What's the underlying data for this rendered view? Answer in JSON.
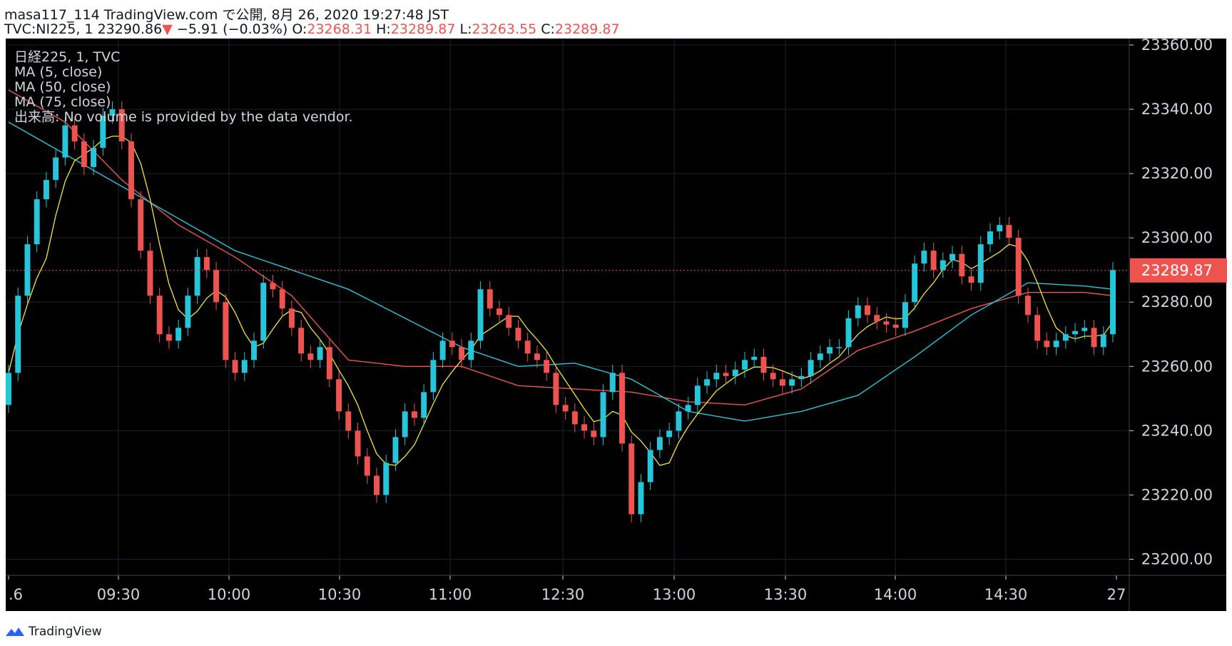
{
  "header": {
    "line1": "masa117_114 TradingView.com で公開, 8月 26, 2020 19:27:48 JST",
    "symbol": "TVC:NI225, 1",
    "price": "23290.86",
    "arrow": "▼",
    "change": "−5.91 (−0.03%)",
    "o_label": "O:",
    "o_value": "23268.31",
    "h_label": "H:",
    "h_value": "23289.87",
    "l_label": "L:",
    "l_value": "23263.55",
    "c_label": "C:",
    "c_value": "23289.87"
  },
  "legend": [
    "日経225, 1, TVC",
    "MA (5, close)",
    "MA (50, close)",
    "MA (75, close)",
    "出来高: No volume is provided by the data vendor."
  ],
  "footer": {
    "brand": "TradingView"
  },
  "colors": {
    "background": "#000000",
    "grid": "#1e222d",
    "up": "#26c6da",
    "down": "#ef5350",
    "ma5": "#f5e536",
    "ma50": "#26c6da",
    "ma75": "#ef5350",
    "price_line": "#ef5350",
    "text": "#d1d4dc"
  },
  "chart_data": {
    "type": "candlestick",
    "title": "日経225, 1, TVC",
    "ylim": [
      23195,
      23362
    ],
    "y_ticks": [
      "23200.00",
      "23220.00",
      "23240.00",
      "23260.00",
      "23280.00",
      "23300.00",
      "23320.00",
      "23340.00",
      "23360.00"
    ],
    "x_ticks": [
      ".6",
      "09:30",
      "10:00",
      "10:30",
      "11:00",
      "12:30",
      "13:00",
      "13:30",
      "14:00",
      "14:30",
      "27"
    ],
    "last_price": "23289.87",
    "last_price_value": 23289.87,
    "close_path": [
      [
        0,
        23258
      ],
      [
        1,
        23282
      ],
      [
        2,
        23298
      ],
      [
        3,
        23312
      ],
      [
        4,
        23318
      ],
      [
        5,
        23325
      ],
      [
        6,
        23335
      ],
      [
        7,
        23330
      ],
      [
        8,
        23322
      ],
      [
        9,
        23328
      ],
      [
        10,
        23338
      ],
      [
        11,
        23340
      ],
      [
        12,
        23330
      ],
      [
        13,
        23312
      ],
      [
        14,
        23296
      ],
      [
        15,
        23282
      ],
      [
        16,
        23270
      ],
      [
        17,
        23268
      ],
      [
        18,
        23272
      ],
      [
        19,
        23282
      ],
      [
        20,
        23294
      ],
      [
        21,
        23290
      ],
      [
        22,
        23280
      ],
      [
        23,
        23262
      ],
      [
        24,
        23258
      ],
      [
        25,
        23262
      ],
      [
        26,
        23268
      ],
      [
        27,
        23286
      ],
      [
        28,
        23284
      ],
      [
        29,
        23278
      ],
      [
        30,
        23272
      ],
      [
        31,
        23264
      ],
      [
        32,
        23262
      ],
      [
        33,
        23266
      ],
      [
        34,
        23256
      ],
      [
        35,
        23246
      ],
      [
        36,
        23240
      ],
      [
        37,
        23232
      ],
      [
        38,
        23226
      ],
      [
        39,
        23220
      ],
      [
        40,
        23230
      ],
      [
        41,
        23238
      ],
      [
        42,
        23246
      ],
      [
        43,
        23244
      ],
      [
        44,
        23252
      ],
      [
        45,
        23262
      ],
      [
        46,
        23268
      ],
      [
        47,
        23266
      ],
      [
        48,
        23262
      ],
      [
        49,
        23268
      ],
      [
        50,
        23284
      ],
      [
        51,
        23278
      ],
      [
        52,
        23276
      ],
      [
        53,
        23272
      ],
      [
        54,
        23268
      ],
      [
        55,
        23264
      ],
      [
        56,
        23262
      ],
      [
        57,
        23258
      ],
      [
        58,
        23248
      ],
      [
        59,
        23246
      ],
      [
        60,
        23242
      ],
      [
        61,
        23240
      ],
      [
        62,
        23238
      ],
      [
        63,
        23252
      ],
      [
        64,
        23258
      ],
      [
        65,
        23236
      ],
      [
        66,
        23214
      ],
      [
        67,
        23224
      ],
      [
        68,
        23234
      ],
      [
        69,
        23238
      ],
      [
        70,
        23240
      ],
      [
        71,
        23246
      ],
      [
        72,
        23248
      ],
      [
        73,
        23254
      ],
      [
        74,
        23256
      ],
      [
        75,
        23258
      ],
      [
        76,
        23257
      ],
      [
        77,
        23259
      ],
      [
        78,
        23262
      ],
      [
        79,
        23263
      ],
      [
        80,
        23258
      ],
      [
        81,
        23256
      ],
      [
        82,
        23254
      ],
      [
        83,
        23256
      ],
      [
        84,
        23257
      ],
      [
        85,
        23262
      ],
      [
        86,
        23264
      ],
      [
        87,
        23266
      ],
      [
        88,
        23266
      ],
      [
        89,
        23275
      ],
      [
        90,
        23279
      ],
      [
        91,
        23276
      ],
      [
        92,
        23274
      ],
      [
        93,
        23273
      ],
      [
        94,
        23272
      ],
      [
        95,
        23280
      ],
      [
        96,
        23292
      ],
      [
        97,
        23296
      ],
      [
        98,
        23290
      ],
      [
        99,
        23293
      ],
      [
        100,
        23295
      ],
      [
        101,
        23288
      ],
      [
        102,
        23286
      ],
      [
        103,
        23298
      ],
      [
        104,
        23302
      ],
      [
        105,
        23304
      ],
      [
        106,
        23300
      ],
      [
        107,
        23282
      ],
      [
        108,
        23276
      ],
      [
        109,
        23268
      ],
      [
        110,
        23266
      ],
      [
        111,
        23268
      ],
      [
        112,
        23270
      ],
      [
        113,
        23271
      ],
      [
        114,
        23272
      ],
      [
        115,
        23266
      ],
      [
        116,
        23270
      ],
      [
        117,
        23290
      ]
    ],
    "ma50_path": [
      [
        0,
        23336
      ],
      [
        6,
        23326
      ],
      [
        12,
        23316
      ],
      [
        18,
        23306
      ],
      [
        24,
        23296
      ],
      [
        30,
        23290
      ],
      [
        36,
        23284
      ],
      [
        42,
        23275
      ],
      [
        48,
        23266
      ],
      [
        54,
        23260
      ],
      [
        60,
        23261
      ],
      [
        66,
        23256
      ],
      [
        72,
        23246
      ],
      [
        78,
        23243
      ],
      [
        84,
        23246
      ],
      [
        90,
        23251
      ],
      [
        96,
        23263
      ],
      [
        102,
        23276
      ],
      [
        108,
        23286
      ],
      [
        114,
        23285
      ],
      [
        117,
        23284
      ]
    ],
    "ma75_path": [
      [
        0,
        23346
      ],
      [
        6,
        23336
      ],
      [
        12,
        23318
      ],
      [
        18,
        23304
      ],
      [
        24,
        23294
      ],
      [
        30,
        23282
      ],
      [
        36,
        23262
      ],
      [
        42,
        23260
      ],
      [
        48,
        23260
      ],
      [
        54,
        23254
      ],
      [
        60,
        23253
      ],
      [
        66,
        23252
      ],
      [
        72,
        23249
      ],
      [
        78,
        23248
      ],
      [
        84,
        23253
      ],
      [
        90,
        23265
      ],
      [
        96,
        23271
      ],
      [
        102,
        23278
      ],
      [
        108,
        23283
      ],
      [
        114,
        23283
      ],
      [
        117,
        23282
      ]
    ]
  }
}
